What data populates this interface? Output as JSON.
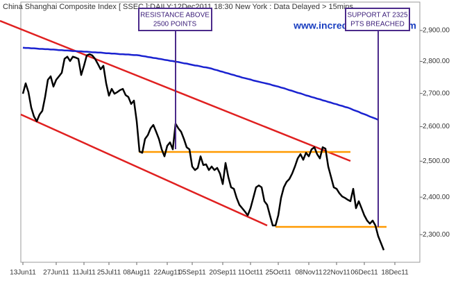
{
  "chart_data": {
    "type": "line",
    "title": "China Shanghai Composite Index [ SSEC ]:DAILY:12Dec2011 18:30 New York : Data Delayed > 15mins",
    "watermark": "www.incrediblecharts.com",
    "annotations": [
      [
        "RESISTANCE ABOVE",
        "2500 POINTS"
      ],
      [
        "SUPPORT AT 2325",
        "PTS BREACHED"
      ]
    ],
    "categories": [
      "13Jun11",
      null,
      null,
      null,
      null,
      null,
      null,
      null,
      null,
      null,
      null,
      null,
      "27Jun11",
      null,
      null,
      null,
      null,
      null,
      null,
      null,
      null,
      null,
      "11Jul11",
      null,
      null,
      null,
      null,
      null,
      null,
      null,
      null,
      "25Jul11",
      null,
      null,
      null,
      null,
      null,
      null,
      null,
      null,
      null,
      "08Aug11",
      null,
      null,
      null,
      null,
      null,
      null,
      null,
      null,
      null,
      null,
      "22Aug11",
      null,
      null,
      null,
      null,
      null,
      null,
      null,
      null,
      "05Sep11",
      null,
      null,
      null,
      null,
      null,
      null,
      null,
      null,
      null,
      null,
      "20Sep11",
      null,
      null,
      null,
      null,
      null,
      null,
      null,
      null,
      null,
      "11Oct11",
      null,
      null,
      null,
      null,
      null,
      null,
      null,
      null,
      null,
      "25Oct11",
      null,
      null,
      null,
      null,
      null,
      null,
      null,
      null,
      null,
      null,
      "08Nov11",
      null,
      null,
      null,
      null,
      null,
      null,
      null,
      null,
      null,
      "22Nov11",
      null,
      null,
      null,
      null,
      null,
      null,
      null,
      null,
      null,
      "06Dec11",
      null,
      null,
      null,
      null,
      null,
      null,
      null,
      null,
      null,
      null,
      "18Dec11"
    ],
    "series": [
      {
        "color": "#000000",
        "values": [
          2699,
          2731,
          2704,
          2657,
          2630,
          2616,
          2636,
          2647,
          2689,
          2742,
          2753,
          2721,
          2742,
          2753,
          2764,
          2808,
          2815,
          2801,
          2815,
          2812,
          2808,
          2757,
          2786,
          2819,
          2823,
          2819,
          2808,
          2792,
          2775,
          2786,
          2731,
          2693,
          2714,
          2699,
          2704,
          2710,
          2714,
          2695,
          2689,
          2668,
          2678,
          2616,
          2528,
          2524,
          2564,
          2575,
          2595,
          2605,
          2585,
          2564,
          2534,
          2514,
          2544,
          2554,
          2534,
          2609,
          2595,
          2585,
          2564,
          2540,
          2534,
          2485,
          2475,
          2481,
          2514,
          2489,
          2491,
          2475,
          2485,
          2475,
          2481,
          2465,
          2436,
          2495,
          2456,
          2427,
          2423,
          2398,
          2379,
          2370,
          2361,
          2351,
          2370,
          2398,
          2427,
          2432,
          2427,
          2389,
          2379,
          2351,
          2324,
          2324,
          2351,
          2398,
          2427,
          2442,
          2450,
          2465,
          2485,
          2508,
          2520,
          2504,
          2524,
          2514,
          2534,
          2540,
          2520,
          2508,
          2540,
          2536,
          2485,
          2456,
          2427,
          2423,
          2411,
          2402,
          2398,
          2393,
          2389,
          2423,
          2370,
          2389,
          2370,
          2351,
          2337,
          2329,
          2337,
          2324,
          2296,
          2278,
          2260,
          null,
          null,
          null,
          null
        ]
      },
      {
        "color": "#1a22d0",
        "values": [
          2844,
          2843,
          2843,
          2842,
          2842,
          2841,
          2840,
          2840,
          2839,
          2839,
          2838,
          2838,
          2837,
          2836,
          2836,
          2835,
          2835,
          2834,
          2833,
          2833,
          2832,
          2832,
          2831,
          2831,
          2830,
          2829,
          2829,
          2828,
          2828,
          2827,
          2826,
          2826,
          2825,
          2825,
          2824,
          2823,
          2823,
          2822,
          2822,
          2821,
          2820,
          2820,
          2819,
          2817,
          2816,
          2814,
          2813,
          2811,
          2810,
          2808,
          2807,
          2805,
          2804,
          2802,
          2801,
          2799,
          2798,
          2796,
          2794,
          2793,
          2791,
          2789,
          2787,
          2786,
          2784,
          2782,
          2781,
          2779,
          2777,
          2774,
          2772,
          2769,
          2767,
          2764,
          2762,
          2759,
          2757,
          2754,
          2752,
          2749,
          2747,
          2745,
          2743,
          2740,
          2738,
          2736,
          2734,
          2732,
          2730,
          2728,
          2725,
          2723,
          2721,
          2718,
          2716,
          2713,
          2710,
          2708,
          2705,
          2702,
          2700,
          2697,
          2694,
          2692,
          2689,
          2687,
          2684,
          2682,
          2679,
          2677,
          2674,
          2672,
          2669,
          2667,
          2664,
          2662,
          2659,
          2657,
          2654,
          2650,
          2647,
          2644,
          2640,
          2637,
          2634,
          2630,
          2627,
          2624,
          2620,
          null,
          null,
          null,
          null,
          null,
          null
        ]
      }
    ],
    "log_scale": true,
    "ylim": [
      2229,
      2995
    ],
    "yticks": [
      {
        "value": 2300,
        "label": "2,300.00"
      },
      {
        "value": 2400,
        "label": "2,400.00"
      },
      {
        "value": 2500,
        "label": "2,500.00"
      },
      {
        "value": 2600,
        "label": "2,600.00"
      },
      {
        "value": 2700,
        "label": "2,700.00"
      },
      {
        "value": 2800,
        "label": "2,800.00"
      },
      {
        "value": 2900,
        "label": "2,900.00"
      }
    ]
  }
}
